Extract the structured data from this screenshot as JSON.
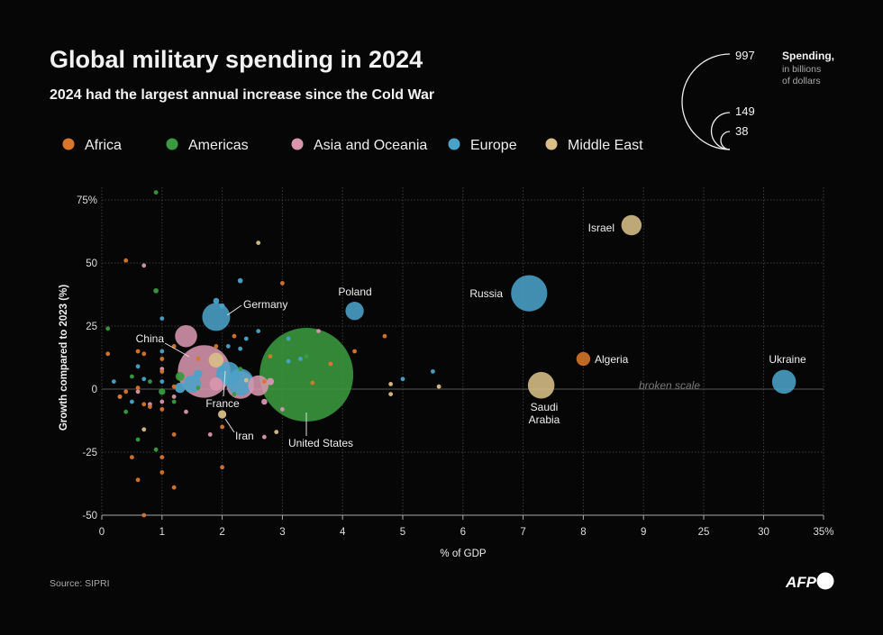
{
  "chart_data": {
    "type": "scatter",
    "title": "Global military spending in 2024",
    "subtitle": "2024 had the largest annual increase since the Cold War",
    "xlabel": "% of GDP",
    "ylabel": "Growth compared to  2023 (%)",
    "x_ticks": [
      "0",
      "1",
      "2",
      "3",
      "4",
      "5",
      "6",
      "7",
      "8",
      "9",
      "25",
      "30",
      "35%"
    ],
    "x_tick_values": [
      0,
      1,
      2,
      3,
      4,
      5,
      6,
      7,
      8,
      9,
      25,
      30,
      35
    ],
    "y_ticks": [
      "75%",
      "50",
      "25",
      "0",
      "-25",
      "-50"
    ],
    "y_tick_values": [
      75,
      50,
      25,
      0,
      -25,
      -50
    ],
    "xlim": [
      0,
      35
    ],
    "ylim": [
      -50,
      75
    ],
    "x_scale_break": [
      9,
      25
    ],
    "break_note": "broken scale",
    "grid": true,
    "legend_position": "top-left",
    "regions": [
      {
        "name": "Africa",
        "color": "#d8762b"
      },
      {
        "name": "Americas",
        "color": "#3a9a3f"
      },
      {
        "name": "Asia and Oceania",
        "color": "#d795ae"
      },
      {
        "name": "Europe",
        "color": "#4ba2c8"
      },
      {
        "name": "Middle East",
        "color": "#d9bf87"
      }
    ],
    "size_legend": {
      "title": "Spending,",
      "subtitle_lines": [
        "in billions",
        "of dollars"
      ],
      "values": [
        997,
        149,
        38
      ]
    },
    "points": [
      {
        "x": 3.4,
        "y": 5.7,
        "value": 997,
        "region": "Americas",
        "label": "United States"
      },
      {
        "x": 1.7,
        "y": 7,
        "value": 314,
        "region": "Asia and Oceania",
        "label": "China"
      },
      {
        "x": 7.1,
        "y": 38,
        "value": 149,
        "region": "Europe",
        "label": "Russia"
      },
      {
        "x": 1.9,
        "y": 28.6,
        "value": 88.5,
        "region": "Europe",
        "label": "Germany"
      },
      {
        "x": 2.3,
        "y": 1.6,
        "value": 86.1,
        "region": "Asia and Oceania"
      },
      {
        "x": 2.3,
        "y": 2.8,
        "value": 81.8,
        "region": "Europe"
      },
      {
        "x": 7.3,
        "y": 1.5,
        "value": 80.3,
        "region": "Middle East",
        "label": "Saudi Arabia"
      },
      {
        "x": 31.7,
        "y": 2.9,
        "value": 64.7,
        "region": "Europe",
        "label": "Ukraine"
      },
      {
        "x": 2.1,
        "y": 6.1,
        "value": 64.7,
        "region": "Europe",
        "label": "France"
      },
      {
        "x": 1.4,
        "y": 21,
        "value": 55.3,
        "region": "Asia and Oceania"
      },
      {
        "x": 2.6,
        "y": 1.4,
        "value": 47.6,
        "region": "Asia and Oceania"
      },
      {
        "x": 8.8,
        "y": 65,
        "value": 46.5,
        "region": "Middle East",
        "label": "Israel"
      },
      {
        "x": 4.2,
        "y": 31,
        "value": 38,
        "region": "Europe",
        "label": "Poland"
      },
      {
        "x": 1.5,
        "y": 2,
        "value": 35,
        "region": "Europe"
      },
      {
        "x": 1.9,
        "y": 2,
        "value": 20,
        "region": "Asia and Oceania"
      },
      {
        "x": 1.9,
        "y": 11.5,
        "value": 25,
        "region": "Middle East"
      },
      {
        "x": 8.0,
        "y": 12,
        "value": 21.8,
        "region": "Africa",
        "label": "Algeria"
      },
      {
        "x": 1.3,
        "y": 0.5,
        "value": 12,
        "region": "Europe"
      },
      {
        "x": 2.0,
        "y": -10,
        "value": 7.9,
        "region": "Middle East",
        "label": "Iran"
      },
      {
        "x": 1.3,
        "y": 5,
        "value": 9,
        "region": "Americas"
      },
      {
        "x": 1.6,
        "y": 6,
        "value": 8,
        "region": "Europe"
      },
      {
        "x": 2.8,
        "y": 3,
        "value": 6,
        "region": "Asia and Oceania"
      },
      {
        "x": 2.7,
        "y": -5,
        "value": 4,
        "region": "Asia and Oceania"
      },
      {
        "x": 1.0,
        "y": -1,
        "value": 5,
        "region": "Americas"
      },
      {
        "x": 0.9,
        "y": 39,
        "value": 3,
        "region": "Americas"
      },
      {
        "x": 2.3,
        "y": 43,
        "value": 3,
        "region": "Europe"
      },
      {
        "x": 1.9,
        "y": 35,
        "value": 4,
        "region": "Europe"
      },
      {
        "x": 2.0,
        "y": 33,
        "value": 3,
        "region": "Europe"
      },
      {
        "x": 3.4,
        "y": 13,
        "value": 2.5,
        "region": "Americas"
      },
      {
        "x": 2.0,
        "y": 8,
        "value": 4,
        "region": "Europe"
      },
      {
        "x": 2.4,
        "y": 20,
        "value": 2,
        "region": "Europe"
      },
      {
        "x": 2.1,
        "y": 17,
        "value": 2,
        "region": "Europe"
      },
      {
        "x": 3.1,
        "y": 11,
        "value": 2,
        "region": "Europe"
      },
      {
        "x": 2.4,
        "y": 3.5,
        "value": 2,
        "region": "Middle East"
      },
      {
        "x": 4.8,
        "y": -2,
        "value": 2,
        "region": "Middle East"
      },
      {
        "x": 1.6,
        "y": 0.5,
        "value": 1.5,
        "region": "Americas"
      },
      {
        "x": 3.5,
        "y": 2.5,
        "value": 1.5,
        "region": "Africa"
      },
      {
        "x": 0.8,
        "y": -6,
        "value": 2,
        "region": "Asia and Oceania"
      },
      {
        "x": 1.0,
        "y": 8,
        "value": 1.5,
        "region": "Asia and Oceania"
      },
      {
        "x": 0.6,
        "y": -1,
        "value": 1.5,
        "region": "Asia and Oceania"
      },
      {
        "x": 1.0,
        "y": 15,
        "value": 1.2,
        "region": "Europe"
      },
      {
        "x": 0.7,
        "y": 4,
        "value": 1.2,
        "region": "Europe"
      },
      {
        "x": 0.6,
        "y": -20,
        "value": 1,
        "region": "Americas"
      },
      {
        "x": 5.6,
        "y": 1,
        "value": 1,
        "region": "Middle East"
      },
      {
        "x": 2.3,
        "y": 16,
        "value": 1,
        "region": "Europe"
      },
      {
        "x": 1.2,
        "y": -3,
        "value": 1,
        "region": "Asia and Oceania"
      },
      {
        "x": 1.0,
        "y": 7,
        "value": 0.6,
        "region": "Africa"
      },
      {
        "x": 0.7,
        "y": -6,
        "value": 0.6,
        "region": "Africa"
      },
      {
        "x": 0.7,
        "y": -16,
        "value": 0.5,
        "region": "Middle East"
      },
      {
        "x": 0.9,
        "y": 78,
        "value": 0.3,
        "region": "Americas"
      },
      {
        "x": 0.1,
        "y": 24,
        "value": 0.3,
        "region": "Americas"
      },
      {
        "x": 0.9,
        "y": -24,
        "value": 0.5,
        "region": "Americas"
      },
      {
        "x": 0.4,
        "y": -9,
        "value": 0.4,
        "region": "Americas"
      },
      {
        "x": 2.3,
        "y": 8,
        "value": 0.5,
        "region": "Americas"
      },
      {
        "x": 0.8,
        "y": 3,
        "value": 0.5,
        "region": "Americas"
      },
      {
        "x": 0.5,
        "y": 5,
        "value": 0.4,
        "region": "Americas"
      },
      {
        "x": 1.2,
        "y": -5,
        "value": 0.4,
        "region": "Americas"
      },
      {
        "x": 2.2,
        "y": -2,
        "value": 0.5,
        "region": "Americas"
      },
      {
        "x": 0.4,
        "y": 51,
        "value": 0.4,
        "region": "Africa"
      },
      {
        "x": 3.0,
        "y": 42,
        "value": 0.3,
        "region": "Africa"
      },
      {
        "x": 0.7,
        "y": -50,
        "value": 0.3,
        "region": "Africa"
      },
      {
        "x": 0.6,
        "y": -36,
        "value": 0.4,
        "region": "Africa"
      },
      {
        "x": 0.5,
        "y": -27,
        "value": 0.4,
        "region": "Africa"
      },
      {
        "x": 1.0,
        "y": -33,
        "value": 0.4,
        "region": "Africa"
      },
      {
        "x": 1.2,
        "y": -39,
        "value": 0.4,
        "region": "Africa"
      },
      {
        "x": 1.0,
        "y": -27,
        "value": 0.4,
        "region": "Africa"
      },
      {
        "x": 2.0,
        "y": -31,
        "value": 0.4,
        "region": "Africa"
      },
      {
        "x": 0.1,
        "y": 14,
        "value": 0.5,
        "region": "Africa"
      },
      {
        "x": 0.6,
        "y": 15,
        "value": 0.4,
        "region": "Africa"
      },
      {
        "x": 0.7,
        "y": 14,
        "value": 0.4,
        "region": "Africa"
      },
      {
        "x": 1.0,
        "y": 12,
        "value": 0.4,
        "region": "Africa"
      },
      {
        "x": 1.2,
        "y": 17,
        "value": 0.3,
        "region": "Africa"
      },
      {
        "x": 0.4,
        "y": -1,
        "value": 0.4,
        "region": "Africa"
      },
      {
        "x": 0.6,
        "y": 0.5,
        "value": 0.4,
        "region": "Africa"
      },
      {
        "x": 0.8,
        "y": -7,
        "value": 0.4,
        "region": "Africa"
      },
      {
        "x": 1.0,
        "y": -8,
        "value": 0.4,
        "region": "Africa"
      },
      {
        "x": 1.2,
        "y": -18,
        "value": 0.4,
        "region": "Africa"
      },
      {
        "x": 2.0,
        "y": -15,
        "value": 0.3,
        "region": "Africa"
      },
      {
        "x": 1.9,
        "y": 17,
        "value": 0.4,
        "region": "Africa"
      },
      {
        "x": 2.2,
        "y": 21,
        "value": 0.3,
        "region": "Africa"
      },
      {
        "x": 3.8,
        "y": 10,
        "value": 0.3,
        "region": "Africa"
      },
      {
        "x": 4.2,
        "y": 15,
        "value": 0.3,
        "region": "Africa"
      },
      {
        "x": 4.7,
        "y": 21,
        "value": 0.3,
        "region": "Africa"
      },
      {
        "x": 2.8,
        "y": 13,
        "value": 0.4,
        "region": "Africa"
      },
      {
        "x": 1.2,
        "y": 1,
        "value": 0.4,
        "region": "Africa"
      },
      {
        "x": 0.3,
        "y": -3,
        "value": 0.3,
        "region": "Africa"
      },
      {
        "x": 1.6,
        "y": 12,
        "value": 0.3,
        "region": "Africa"
      },
      {
        "x": 2.7,
        "y": 3,
        "value": 0.5,
        "region": "Africa"
      },
      {
        "x": 0.7,
        "y": 49,
        "value": 0.3,
        "region": "Asia and Oceania"
      },
      {
        "x": 1.8,
        "y": -18,
        "value": 0.3,
        "region": "Asia and Oceania"
      },
      {
        "x": 2.7,
        "y": -19,
        "value": 0.3,
        "region": "Asia and Oceania"
      },
      {
        "x": 1.4,
        "y": -9,
        "value": 0.3,
        "region": "Asia and Oceania"
      },
      {
        "x": 3.6,
        "y": 23,
        "value": 0.3,
        "region": "Asia and Oceania"
      },
      {
        "x": 3.0,
        "y": -8,
        "value": 0.3,
        "region": "Asia and Oceania"
      },
      {
        "x": 1.0,
        "y": -5,
        "value": 0.3,
        "region": "Asia and Oceania"
      },
      {
        "x": 0.3,
        "y": -3,
        "value": 0.4,
        "region": "Asia and Oceania"
      },
      {
        "x": 1.0,
        "y": 28,
        "value": 0.3,
        "region": "Europe"
      },
      {
        "x": 2.6,
        "y": 23,
        "value": 0.3,
        "region": "Europe"
      },
      {
        "x": 0.6,
        "y": 9,
        "value": 0.3,
        "region": "Europe"
      },
      {
        "x": 1.0,
        "y": 3,
        "value": 1,
        "region": "Europe"
      },
      {
        "x": 0.2,
        "y": 3,
        "value": 0.4,
        "region": "Europe"
      },
      {
        "x": 0.5,
        "y": -5,
        "value": 0.4,
        "region": "Europe"
      },
      {
        "x": 3.1,
        "y": 20,
        "value": 0.3,
        "region": "Europe"
      },
      {
        "x": 3.3,
        "y": 12,
        "value": 0.3,
        "region": "Europe"
      },
      {
        "x": 5.0,
        "y": 4,
        "value": 0.5,
        "region": "Europe"
      },
      {
        "x": 5.5,
        "y": 7,
        "value": 0.3,
        "region": "Europe"
      },
      {
        "x": 2.6,
        "y": 58,
        "value": 0.3,
        "region": "Middle East"
      },
      {
        "x": 4.8,
        "y": 2,
        "value": 0.3,
        "region": "Middle East"
      },
      {
        "x": 2.9,
        "y": -17,
        "value": 0.4,
        "region": "Middle East"
      }
    ]
  },
  "footer": {
    "source": "Source: SIPRI",
    "logo": "AFP"
  }
}
